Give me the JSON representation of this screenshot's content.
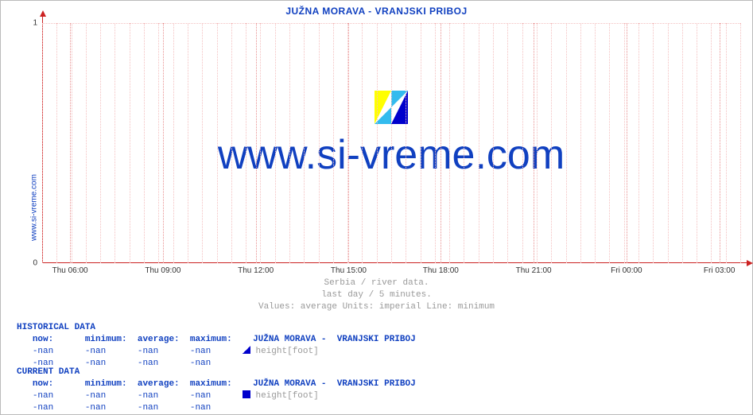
{
  "side_label": "www.si-vreme.com",
  "title": "JUŽNA MORAVA -  VRANJSKI PRIBOJ",
  "watermark_text": "www.si-vreme.com",
  "caption": {
    "line1": "Serbia / river data.",
    "line2": "last day / 5 minutes.",
    "line3": "Values: average  Units: imperial  Line: minimum"
  },
  "chart": {
    "type": "line",
    "background_color": "#ffffff",
    "grid_color_minor": "#f4c0c0",
    "grid_color_major": "#e89090",
    "axis_color": "#cc2222",
    "ylim": [
      0,
      1
    ],
    "yticks": [
      0,
      1
    ],
    "xticks": [
      "Thu 06:00",
      "Thu 09:00",
      "Thu 12:00",
      "Thu 15:00",
      "Thu 18:00",
      "Thu 21:00",
      "Fri 00:00",
      "Fri 03:00"
    ],
    "xtick_positions_pct": [
      4,
      17.3,
      30.6,
      43.9,
      57.1,
      70.4,
      83.7,
      97
    ],
    "minor_x_count": 48,
    "tick_font_size": 10,
    "title_font_size": 12,
    "title_color": "#1040c0",
    "watermark_font_size": 52,
    "watermark_color": "#1040c0",
    "logo_colors": {
      "tri1": "#ffff00",
      "tri2": "#33bbee",
      "tri3": "#0000cc"
    }
  },
  "tables": {
    "historical": {
      "heading": "HISTORICAL DATA",
      "columns": [
        "now:",
        "minimum:",
        "average:",
        "maximum:"
      ],
      "series_label": "JUŽNA MORAVA -  VRANJSKI PRIBOJ",
      "rows": [
        {
          "values": [
            "-nan",
            "-nan",
            "-nan",
            "-nan"
          ],
          "swatch": "#0000cc",
          "swatch_shape": "half",
          "extra": "height[foot]"
        },
        {
          "values": [
            "-nan",
            "-nan",
            "-nan",
            "-nan"
          ],
          "swatch": null,
          "extra": ""
        }
      ]
    },
    "current": {
      "heading": "CURRENT DATA",
      "columns": [
        "now:",
        "minimum:",
        "average:",
        "maximum:"
      ],
      "series_label": "JUŽNA MORAVA -  VRANJSKI PRIBOJ",
      "rows": [
        {
          "values": [
            "-nan",
            "-nan",
            "-nan",
            "-nan"
          ],
          "swatch": "#0000cc",
          "swatch_shape": "full",
          "extra": "height[foot]"
        },
        {
          "values": [
            "-nan",
            "-nan",
            "-nan",
            "-nan"
          ],
          "swatch": null,
          "extra": ""
        }
      ]
    }
  }
}
